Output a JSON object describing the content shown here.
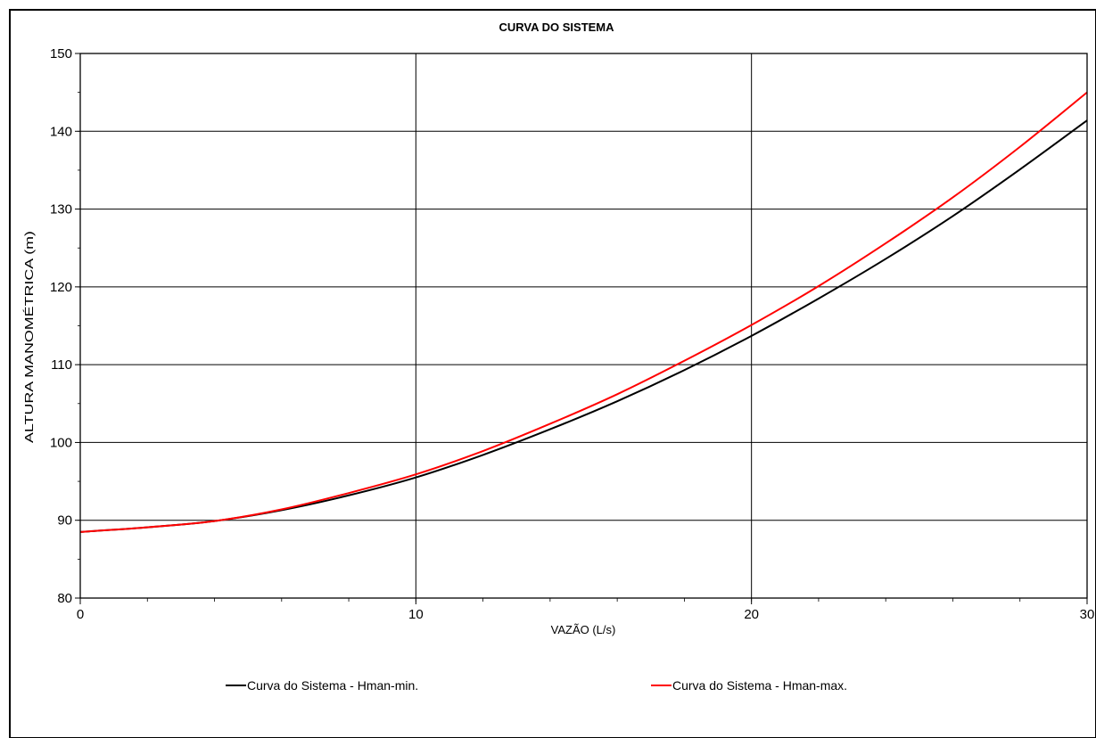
{
  "chart_data": {
    "type": "line",
    "title": "CURVA DO SISTEMA",
    "xlabel": "VAZÃO (L/s)",
    "ylabel": "ALTURA MANOMÉTRICA (m)",
    "xlim": [
      0,
      30
    ],
    "ylim": [
      80,
      150
    ],
    "x_ticks": [
      0,
      10,
      20,
      30
    ],
    "y_ticks": [
      80,
      90,
      100,
      110,
      120,
      130,
      140,
      150
    ],
    "grid": true,
    "legend_position": "bottom",
    "series": [
      {
        "name": "Curva do Sistema - Hman-min.",
        "color": "#000000",
        "x": [
          0,
          2,
          4,
          6,
          8,
          10,
          12,
          14,
          16,
          18,
          20,
          22,
          24,
          26,
          28,
          30
        ],
        "y": [
          88.5,
          89.1,
          89.9,
          91.3,
          93.2,
          95.5,
          98.4,
          101.7,
          105.3,
          109.3,
          113.7,
          118.5,
          123.6,
          129.1,
          135.1,
          141.4
        ]
      },
      {
        "name": "Curva do Sistema - Hman-max.",
        "color": "#ff0000",
        "x": [
          0,
          2,
          4,
          6,
          8,
          10,
          12,
          14,
          16,
          18,
          20,
          22,
          24,
          26,
          28,
          30
        ],
        "y": [
          88.5,
          89.1,
          89.9,
          91.4,
          93.5,
          95.9,
          98.9,
          102.4,
          106.2,
          110.5,
          115.1,
          120.1,
          125.6,
          131.5,
          138.0,
          145.0
        ]
      }
    ]
  }
}
